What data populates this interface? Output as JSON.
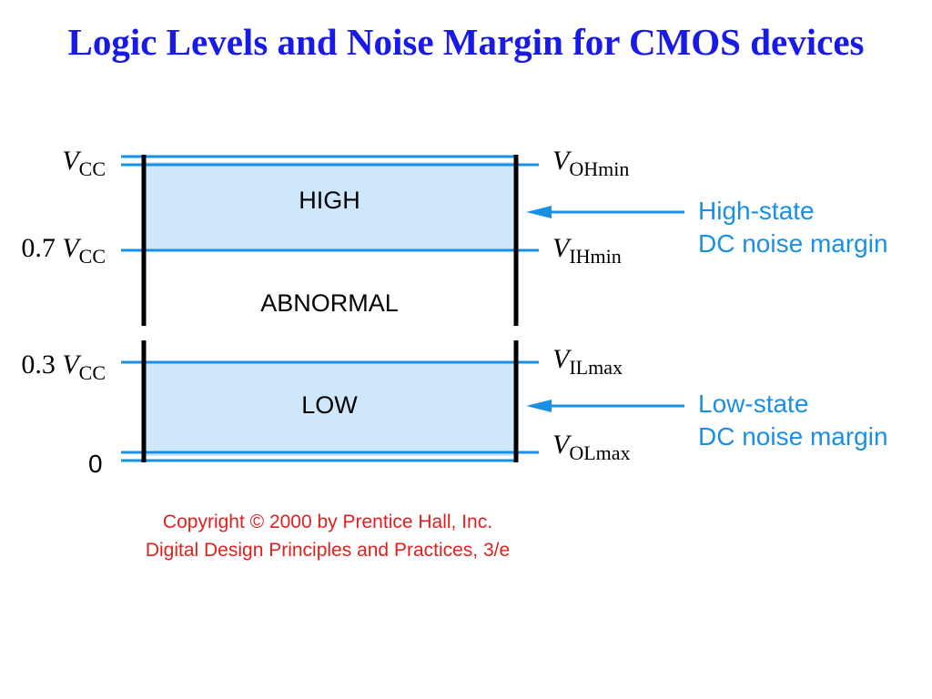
{
  "title": "Logic Levels and Noise Margin for CMOS devices",
  "left_labels": {
    "vcc": {
      "prefix": "",
      "v": "V",
      "sub": "CC"
    },
    "v07": {
      "prefix": "0.7 ",
      "v": "V",
      "sub": "CC"
    },
    "v03": {
      "prefix": "0.3 ",
      "v": "V",
      "sub": "CC"
    },
    "zero": "0"
  },
  "right_labels": {
    "voh": {
      "v": "V",
      "sub": "OHmin"
    },
    "vih": {
      "v": "V",
      "sub": "IHmin"
    },
    "vil": {
      "v": "V",
      "sub": "ILmax"
    },
    "vol": {
      "v": "V",
      "sub": "OLmax"
    }
  },
  "regions": {
    "high": "HIGH",
    "abnormal": "ABNORMAL",
    "low": "LOW"
  },
  "margins": {
    "high": {
      "line1": "High-state",
      "line2": "DC noise margin"
    },
    "low": {
      "line1": "Low-state",
      "line2": "DC noise margin"
    }
  },
  "copyright": {
    "line1": "Copyright © 2000 by Prentice Hall, Inc.",
    "line2": "Digital Design Principles and Practices, 3/e"
  },
  "colors": {
    "title": "#1a1ae6",
    "band_fill": "#cfe7fb",
    "line": "#1a8fe6",
    "copyright": "#e02020"
  }
}
